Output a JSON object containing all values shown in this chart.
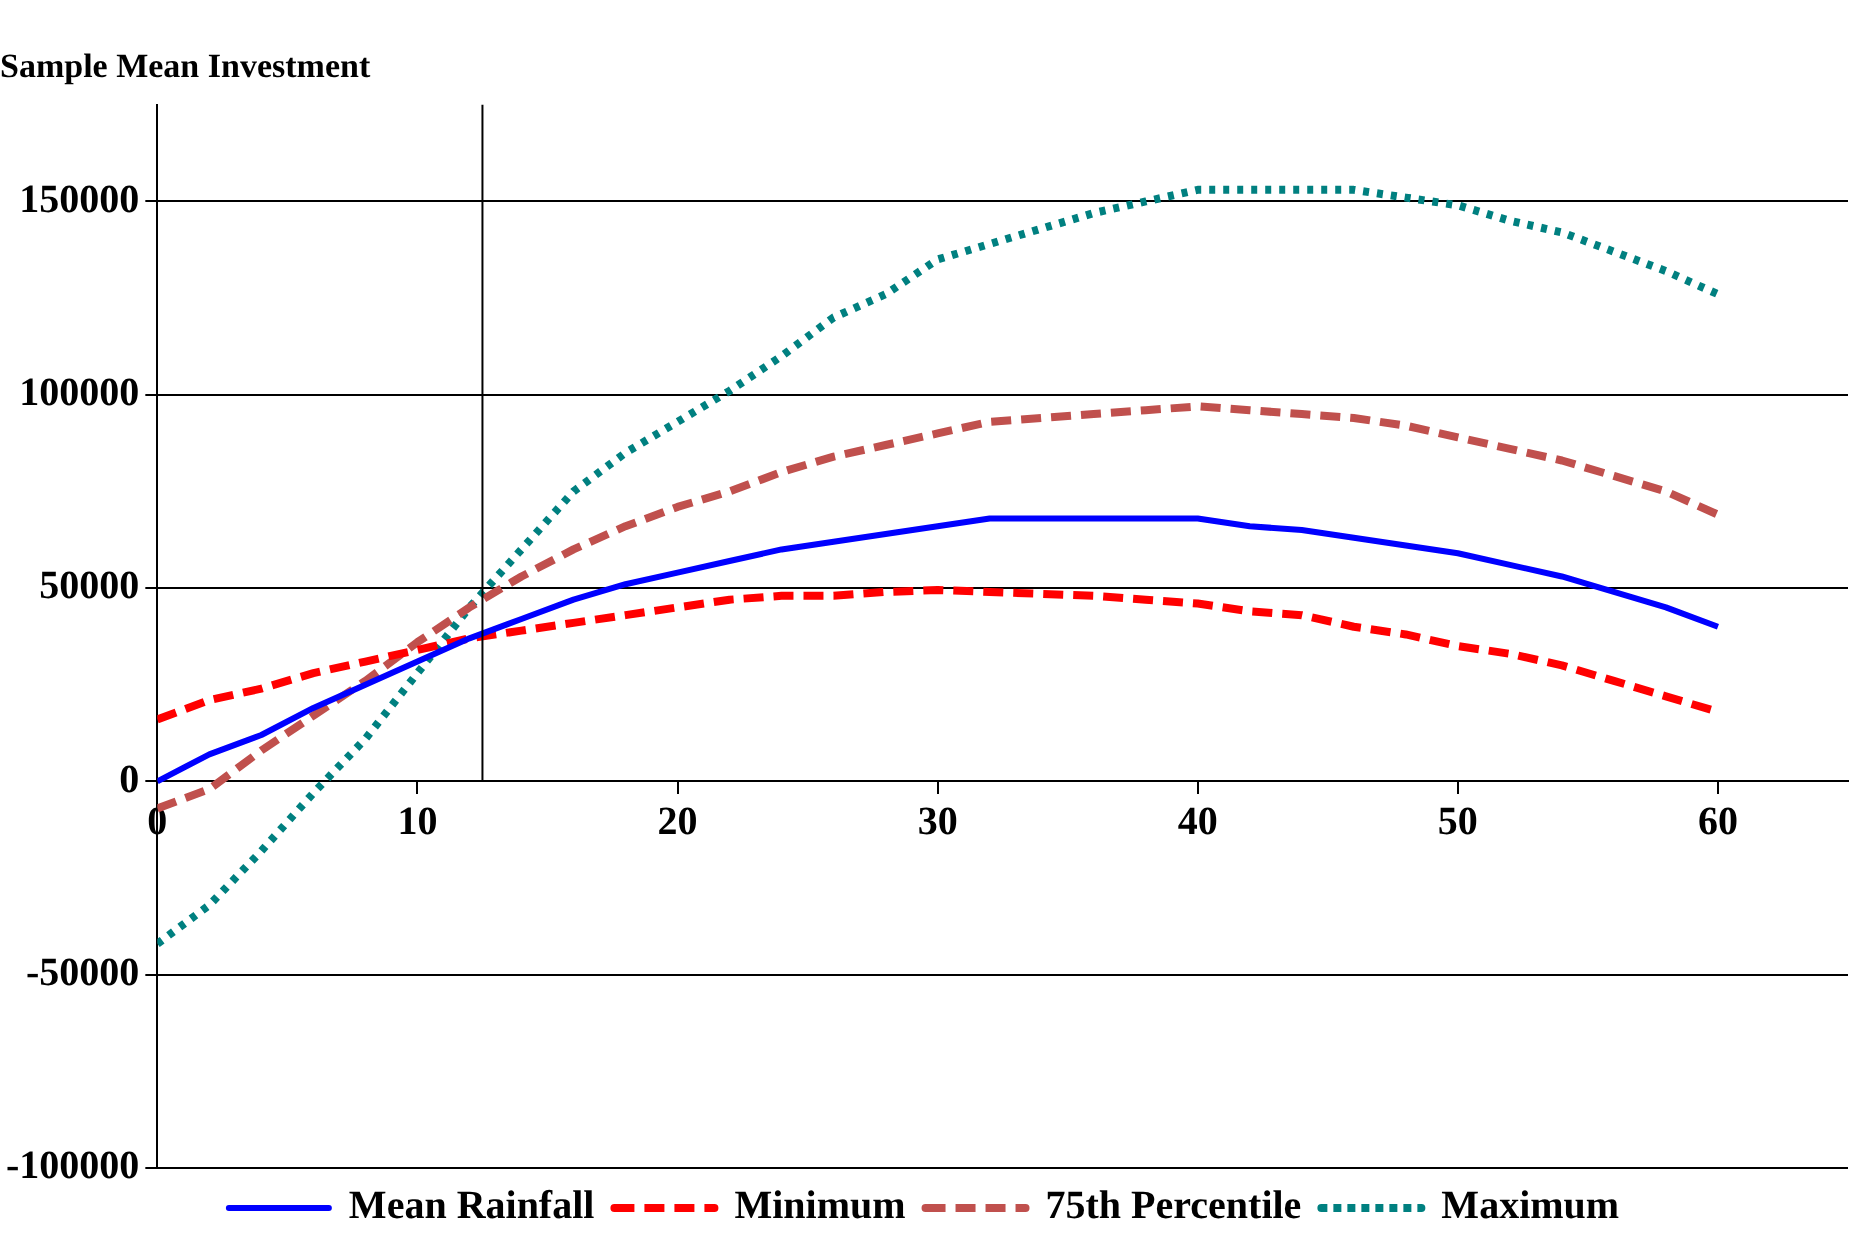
{
  "chart_data": {
    "type": "line",
    "title": "Sample Mean Investment",
    "x": [
      0,
      2,
      4,
      6,
      8,
      10,
      12,
      14,
      16,
      18,
      20,
      22,
      24,
      26,
      28,
      30,
      32,
      34,
      36,
      38,
      40,
      42,
      44,
      46,
      48,
      50,
      52,
      54,
      56,
      58,
      60
    ],
    "series": [
      {
        "name": "Mean Rainfall",
        "color": "#0000ff",
        "line_style": "solid",
        "values": [
          0,
          7000,
          12000,
          19000,
          25000,
          31000,
          37000,
          42000,
          47000,
          51000,
          54000,
          57000,
          60000,
          62000,
          64000,
          66000,
          68000,
          68000,
          68000,
          68000,
          68000,
          66000,
          65000,
          63000,
          61000,
          59000,
          56000,
          53000,
          49000,
          45000,
          40000
        ]
      },
      {
        "name": "Minimum",
        "color": "#ff0000",
        "line_style": "dashed",
        "values": [
          16000,
          21000,
          24000,
          28000,
          31000,
          34000,
          37000,
          39000,
          41000,
          43000,
          45000,
          47000,
          48000,
          48000,
          49000,
          49500,
          49000,
          48500,
          48000,
          47000,
          46000,
          44000,
          43000,
          40000,
          38000,
          35000,
          33000,
          30000,
          26000,
          22000,
          18000
        ]
      },
      {
        "name": "75th Percentile",
        "color": "#c0504d",
        "line_style": "dashed",
        "values": [
          -7000,
          -2000,
          8000,
          17000,
          26000,
          36000,
          45000,
          53000,
          60000,
          66000,
          71000,
          75000,
          80000,
          84000,
          87000,
          90000,
          93000,
          94000,
          95000,
          96000,
          97000,
          96000,
          95000,
          94000,
          92000,
          89000,
          86000,
          83000,
          79000,
          75000,
          69000
        ]
      },
      {
        "name": "Maximum",
        "color": "#008080",
        "line_style": "dotted",
        "values": [
          -42000,
          -32000,
          -18000,
          -3000,
          11000,
          28000,
          45000,
          60000,
          75000,
          85000,
          93000,
          101000,
          110000,
          120000,
          126000,
          135000,
          139000,
          143000,
          147000,
          150000,
          153000,
          153000,
          153000,
          153000,
          151000,
          149000,
          145000,
          142000,
          137000,
          132000,
          126000
        ]
      }
    ],
    "xlim": [
      0,
      65
    ],
    "xticks": [
      0,
      10,
      20,
      30,
      40,
      50,
      60
    ],
    "ylim": [
      -100000,
      175000
    ],
    "yticks": [
      -100000,
      -50000,
      0,
      50000,
      100000,
      150000
    ],
    "ref_lines": [
      {
        "axis": "x",
        "value": 12.5,
        "label": null
      }
    ],
    "grid": "y",
    "legend": "bottom",
    "marker": "none"
  }
}
